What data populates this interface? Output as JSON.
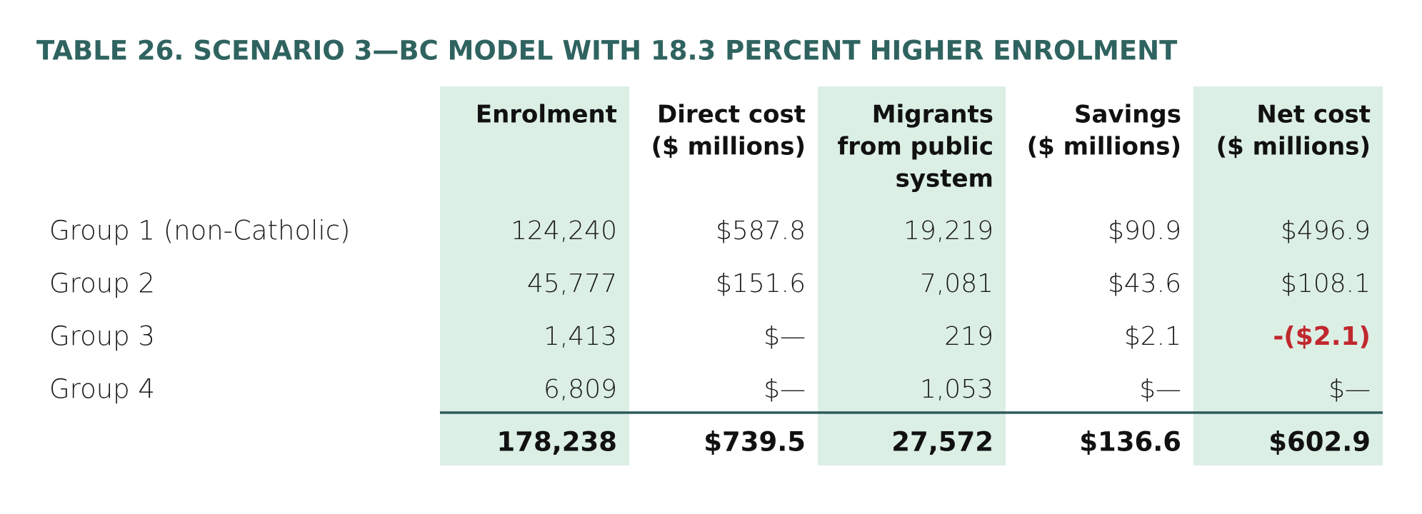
{
  "header": {
    "title": "TABLE 26. SCENARIO 3—BC MODEL WITH 18.3 PERCENT HIGHER ENROLMENT"
  },
  "table": {
    "columns": [
      [
        "Enrolment"
      ],
      [
        "Direct cost",
        "($ millions)"
      ],
      [
        "Migrants",
        "from public",
        "system"
      ],
      [
        "Savings",
        "($ millions)"
      ],
      [
        "Net cost",
        "($ millions)"
      ]
    ],
    "rows": [
      [
        "Group 1 (non-Catholic)",
        "124,240",
        "$587.8",
        "19,219",
        "$90.9",
        "$496.9"
      ],
      [
        "Group 2",
        "45,777",
        "$151.6",
        "7,081",
        "$43.6",
        "$108.1"
      ],
      [
        "Group 3",
        "1,413",
        "$—",
        "219",
        "$2.1",
        "-($2.1)"
      ],
      [
        "Group 4",
        "6,809",
        "$—",
        "1,053",
        "$—",
        "$—"
      ]
    ],
    "totals": [
      "178,238",
      "$739.5",
      "27,572",
      "$136.6",
      "$602.9"
    ]
  }
}
